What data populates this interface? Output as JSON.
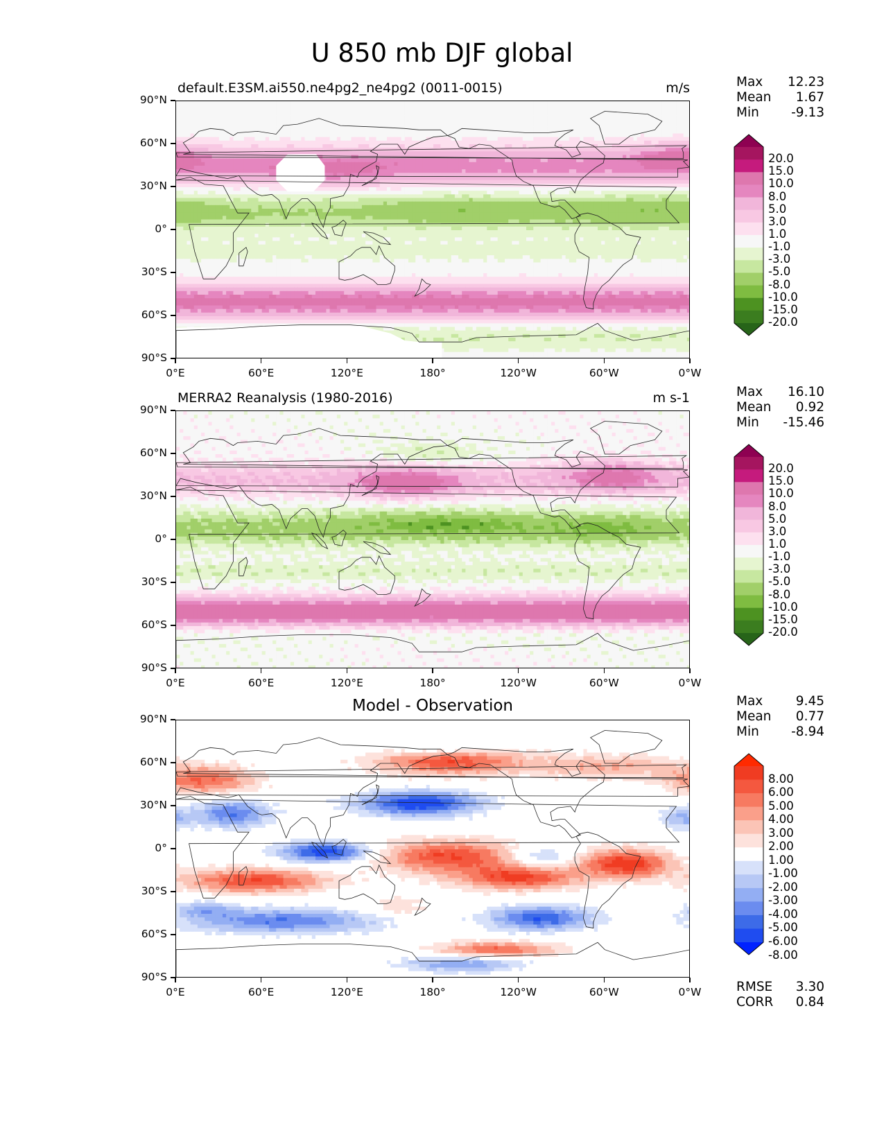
{
  "figure": {
    "title": "U 850 mb DJF global"
  },
  "axes": {
    "lat_labels": [
      "90°N",
      "60°N",
      "30°N",
      "0°",
      "30°S",
      "60°S",
      "90°S"
    ],
    "lon_labels": [
      "0°E",
      "60°E",
      "120°E",
      "180°",
      "120°W",
      "60°W",
      "0°W"
    ]
  },
  "panels": [
    {
      "left_title": "default.E3SM.ai550.ne4pg2_ne4pg2 (0011-0015)",
      "center_title": "",
      "units": "m/s",
      "stats": {
        "max_label": "Max",
        "max": "12.23",
        "mean_label": "Mean",
        "mean": "1.67",
        "min_label": "Min",
        "min": "-9.13"
      },
      "colorbar": {
        "labels": [
          "20.0",
          "15.0",
          "10.0",
          "8.0",
          "5.0",
          "3.0",
          "1.0",
          "-1.0",
          "-3.0",
          "-5.0",
          "-8.0",
          "-10.0",
          "-15.0",
          "-20.0"
        ],
        "colors": [
          "#276419",
          "#3b7d1f",
          "#4d9221",
          "#7fbc41",
          "#a1cf69",
          "#c7e7a0",
          "#e6f5d0",
          "#f7f7f7",
          "#fde0ef",
          "#f8c8e3",
          "#f1b6da",
          "#e586bf",
          "#de77ae",
          "#c51b7d",
          "#a5155f",
          "#8e0152"
        ]
      }
    },
    {
      "left_title": "MERRA2 Reanalysis (1980-2016)",
      "center_title": "",
      "units": "m s-1",
      "stats": {
        "max_label": "Max",
        "max": "16.10",
        "mean_label": "Mean",
        "mean": "0.92",
        "min_label": "Min",
        "min": "-15.46"
      },
      "colorbar": {
        "labels": [
          "20.0",
          "15.0",
          "10.0",
          "8.0",
          "5.0",
          "3.0",
          "1.0",
          "-1.0",
          "-3.0",
          "-5.0",
          "-8.0",
          "-10.0",
          "-15.0",
          "-20.0"
        ],
        "colors": [
          "#276419",
          "#3b7d1f",
          "#4d9221",
          "#7fbc41",
          "#a1cf69",
          "#c7e7a0",
          "#e6f5d0",
          "#f7f7f7",
          "#fde0ef",
          "#f8c8e3",
          "#f1b6da",
          "#e586bf",
          "#de77ae",
          "#c51b7d",
          "#a5155f",
          "#8e0152"
        ]
      }
    },
    {
      "left_title": "",
      "center_title": "Model - Observation",
      "units": "",
      "stats": {
        "max_label": "Max",
        "max": "9.45",
        "mean_label": "Mean",
        "mean": "0.77",
        "min_label": "Min",
        "min": "-8.94"
      },
      "extra_stats": {
        "rmse_label": "RMSE",
        "rmse": "3.30",
        "corr_label": "CORR",
        "corr": "0.84"
      },
      "colorbar": {
        "labels": [
          "8.00",
          "6.00",
          "5.00",
          "4.00",
          "3.00",
          "2.00",
          "1.00",
          "-1.00",
          "-2.00",
          "-3.00",
          "-4.00",
          "-5.00",
          "-6.00",
          "-8.00"
        ],
        "colors": [
          "#0022ff",
          "#1f4cf0",
          "#3d6be8",
          "#6b8cef",
          "#93aef3",
          "#b7c8f5",
          "#d7e1fa",
          "#ffffff",
          "#fde2dc",
          "#fbc4b6",
          "#fa9f8a",
          "#f77a61",
          "#f4583f",
          "#f03c22",
          "#ff2a00"
        ]
      }
    }
  ]
}
